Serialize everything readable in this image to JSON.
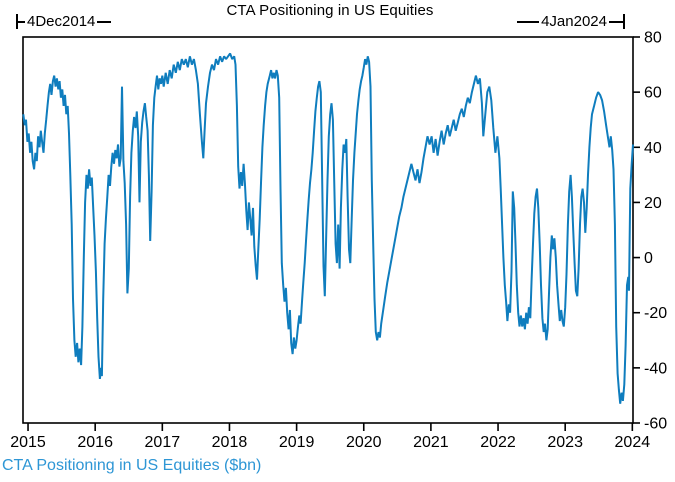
{
  "figure": {
    "title": "CTA Positioning in US Equities",
    "range_start": "4Dec2014",
    "range_end": "4Jan2024",
    "caption": "CTA Positioning in US Equities ($bn)"
  },
  "colors": {
    "line": "#0f7dbe",
    "caption": "#2d96d5",
    "axis": "#000000",
    "background": "#ffffff"
  },
  "chart_data": {
    "type": "line",
    "title": "CTA Positioning in US Equities",
    "series_name": "CTA Positioning in US Equities ($bn)",
    "xlabel": "",
    "ylabel": "",
    "grid": false,
    "legend_position": "none",
    "x_start_label": "4Dec2014",
    "x_end_label": "4Jan2024",
    "xlim": [
      2014.925,
      2024.01
    ],
    "ylim": [
      -60,
      80
    ],
    "x_ticks": [
      2015,
      2016,
      2017,
      2018,
      2019,
      2020,
      2021,
      2022,
      2023,
      2024
    ],
    "y_ticks": [
      80,
      60,
      40,
      20,
      0,
      -20,
      -40,
      -60
    ],
    "points": [
      [
        2014.93,
        52
      ],
      [
        2014.95,
        48
      ],
      [
        2014.97,
        50
      ],
      [
        2014.99,
        42
      ],
      [
        2015.01,
        45
      ],
      [
        2015.03,
        38
      ],
      [
        2015.05,
        42
      ],
      [
        2015.07,
        35
      ],
      [
        2015.09,
        32
      ],
      [
        2015.11,
        38
      ],
      [
        2015.13,
        35
      ],
      [
        2015.15,
        44
      ],
      [
        2015.17,
        40
      ],
      [
        2015.19,
        46
      ],
      [
        2015.21,
        42
      ],
      [
        2015.23,
        38
      ],
      [
        2015.25,
        45
      ],
      [
        2015.27,
        50
      ],
      [
        2015.29,
        55
      ],
      [
        2015.31,
        60
      ],
      [
        2015.33,
        63
      ],
      [
        2015.35,
        59
      ],
      [
        2015.37,
        64
      ],
      [
        2015.39,
        66
      ],
      [
        2015.41,
        62
      ],
      [
        2015.43,
        65
      ],
      [
        2015.45,
        61
      ],
      [
        2015.47,
        64
      ],
      [
        2015.49,
        58
      ],
      [
        2015.51,
        61
      ],
      [
        2015.53,
        55
      ],
      [
        2015.55,
        59
      ],
      [
        2015.57,
        52
      ],
      [
        2015.59,
        55
      ],
      [
        2015.61,
        45
      ],
      [
        2015.63,
        30
      ],
      [
        2015.65,
        12
      ],
      [
        2015.67,
        -15
      ],
      [
        2015.69,
        -30
      ],
      [
        2015.71,
        -36
      ],
      [
        2015.73,
        -31
      ],
      [
        2015.75,
        -38
      ],
      [
        2015.77,
        -33
      ],
      [
        2015.79,
        -39
      ],
      [
        2015.81,
        -25
      ],
      [
        2015.83,
        0
      ],
      [
        2015.85,
        20
      ],
      [
        2015.87,
        30
      ],
      [
        2015.89,
        25
      ],
      [
        2015.91,
        32
      ],
      [
        2015.93,
        26
      ],
      [
        2015.95,
        29
      ],
      [
        2015.97,
        18
      ],
      [
        2015.99,
        8
      ],
      [
        2016.01,
        -5
      ],
      [
        2016.03,
        -22
      ],
      [
        2016.05,
        -36
      ],
      [
        2016.07,
        -44
      ],
      [
        2016.09,
        -40
      ],
      [
        2016.1,
        -43
      ],
      [
        2016.12,
        -15
      ],
      [
        2016.14,
        5
      ],
      [
        2016.16,
        14
      ],
      [
        2016.18,
        22
      ],
      [
        2016.2,
        30
      ],
      [
        2016.22,
        26
      ],
      [
        2016.24,
        33
      ],
      [
        2016.26,
        38
      ],
      [
        2016.28,
        34
      ],
      [
        2016.3,
        39
      ],
      [
        2016.32,
        36
      ],
      [
        2016.34,
        41
      ],
      [
        2016.36,
        33
      ],
      [
        2016.38,
        36
      ],
      [
        2016.4,
        62
      ],
      [
        2016.42,
        35
      ],
      [
        2016.44,
        27
      ],
      [
        2016.46,
        12
      ],
      [
        2016.48,
        -13
      ],
      [
        2016.5,
        -4
      ],
      [
        2016.52,
        22
      ],
      [
        2016.54,
        38
      ],
      [
        2016.56,
        46
      ],
      [
        2016.58,
        51
      ],
      [
        2016.6,
        47
      ],
      [
        2016.62,
        53
      ],
      [
        2016.64,
        44
      ],
      [
        2016.66,
        20
      ],
      [
        2016.68,
        42
      ],
      [
        2016.7,
        49
      ],
      [
        2016.72,
        53
      ],
      [
        2016.74,
        56
      ],
      [
        2016.76,
        51
      ],
      [
        2016.78,
        46
      ],
      [
        2016.8,
        30
      ],
      [
        2016.82,
        6
      ],
      [
        2016.84,
        24
      ],
      [
        2016.86,
        48
      ],
      [
        2016.88,
        58
      ],
      [
        2016.9,
        62
      ],
      [
        2016.92,
        66
      ],
      [
        2016.94,
        61
      ],
      [
        2016.96,
        65
      ],
      [
        2016.98,
        63
      ],
      [
        2017.0,
        66
      ],
      [
        2017.02,
        62
      ],
      [
        2017.05,
        67
      ],
      [
        2017.08,
        63
      ],
      [
        2017.11,
        68
      ],
      [
        2017.14,
        65
      ],
      [
        2017.17,
        70
      ],
      [
        2017.2,
        67
      ],
      [
        2017.23,
        71
      ],
      [
        2017.26,
        68
      ],
      [
        2017.29,
        72
      ],
      [
        2017.32,
        70
      ],
      [
        2017.35,
        72
      ],
      [
        2017.38,
        69
      ],
      [
        2017.41,
        73
      ],
      [
        2017.44,
        70
      ],
      [
        2017.47,
        72
      ],
      [
        2017.5,
        68
      ],
      [
        2017.53,
        63
      ],
      [
        2017.56,
        52
      ],
      [
        2017.59,
        42
      ],
      [
        2017.61,
        36
      ],
      [
        2017.63,
        46
      ],
      [
        2017.65,
        56
      ],
      [
        2017.68,
        62
      ],
      [
        2017.71,
        67
      ],
      [
        2017.74,
        70
      ],
      [
        2017.77,
        68
      ],
      [
        2017.8,
        72
      ],
      [
        2017.83,
        70
      ],
      [
        2017.86,
        73
      ],
      [
        2017.89,
        71
      ],
      [
        2017.92,
        73
      ],
      [
        2017.95,
        72
      ],
      [
        2017.98,
        73
      ],
      [
        2018.01,
        74
      ],
      [
        2018.04,
        72
      ],
      [
        2018.07,
        73
      ],
      [
        2018.09,
        70
      ],
      [
        2018.11,
        55
      ],
      [
        2018.13,
        33
      ],
      [
        2018.15,
        25
      ],
      [
        2018.17,
        31
      ],
      [
        2018.19,
        26
      ],
      [
        2018.21,
        34
      ],
      [
        2018.23,
        27
      ],
      [
        2018.25,
        17
      ],
      [
        2018.27,
        10
      ],
      [
        2018.29,
        20
      ],
      [
        2018.31,
        14
      ],
      [
        2018.33,
        8
      ],
      [
        2018.35,
        18
      ],
      [
        2018.37,
        4
      ],
      [
        2018.39,
        -3
      ],
      [
        2018.41,
        -8
      ],
      [
        2018.43,
        3
      ],
      [
        2018.45,
        14
      ],
      [
        2018.47,
        27
      ],
      [
        2018.49,
        40
      ],
      [
        2018.51,
        48
      ],
      [
        2018.53,
        55
      ],
      [
        2018.55,
        60
      ],
      [
        2018.57,
        63
      ],
      [
        2018.6,
        66
      ],
      [
        2018.62,
        68
      ],
      [
        2018.64,
        65
      ],
      [
        2018.66,
        67
      ],
      [
        2018.68,
        65
      ],
      [
        2018.7,
        68
      ],
      [
        2018.72,
        66
      ],
      [
        2018.74,
        58
      ],
      [
        2018.76,
        25
      ],
      [
        2018.78,
        -2
      ],
      [
        2018.8,
        -10
      ],
      [
        2018.82,
        -16
      ],
      [
        2018.84,
        -11
      ],
      [
        2018.86,
        -20
      ],
      [
        2018.88,
        -26
      ],
      [
        2018.9,
        -19
      ],
      [
        2018.92,
        -31
      ],
      [
        2018.94,
        -35
      ],
      [
        2018.96,
        -29
      ],
      [
        2018.98,
        -33
      ],
      [
        2019.0,
        -30
      ],
      [
        2019.02,
        -25
      ],
      [
        2019.04,
        -21
      ],
      [
        2019.06,
        -24
      ],
      [
        2019.08,
        -16
      ],
      [
        2019.1,
        -9
      ],
      [
        2019.12,
        -2
      ],
      [
        2019.14,
        6
      ],
      [
        2019.16,
        14
      ],
      [
        2019.18,
        21
      ],
      [
        2019.2,
        27
      ],
      [
        2019.22,
        32
      ],
      [
        2019.24,
        38
      ],
      [
        2019.26,
        46
      ],
      [
        2019.28,
        53
      ],
      [
        2019.3,
        58
      ],
      [
        2019.32,
        62
      ],
      [
        2019.34,
        64
      ],
      [
        2019.36,
        60
      ],
      [
        2019.38,
        30
      ],
      [
        2019.4,
        -3
      ],
      [
        2019.42,
        -14
      ],
      [
        2019.44,
        8
      ],
      [
        2019.46,
        28
      ],
      [
        2019.48,
        44
      ],
      [
        2019.5,
        52
      ],
      [
        2019.52,
        56
      ],
      [
        2019.54,
        50
      ],
      [
        2019.56,
        28
      ],
      [
        2019.58,
        5
      ],
      [
        2019.6,
        -2
      ],
      [
        2019.62,
        12
      ],
      [
        2019.64,
        -4
      ],
      [
        2019.66,
        18
      ],
      [
        2019.68,
        32
      ],
      [
        2019.7,
        41
      ],
      [
        2019.72,
        38
      ],
      [
        2019.74,
        43
      ],
      [
        2019.76,
        22
      ],
      [
        2019.78,
        3
      ],
      [
        2019.8,
        -2
      ],
      [
        2019.82,
        14
      ],
      [
        2019.84,
        28
      ],
      [
        2019.86,
        38
      ],
      [
        2019.88,
        45
      ],
      [
        2019.9,
        52
      ],
      [
        2019.92,
        57
      ],
      [
        2019.94,
        61
      ],
      [
        2019.96,
        64
      ],
      [
        2019.98,
        66
      ],
      [
        2020.0,
        69
      ],
      [
        2020.02,
        72
      ],
      [
        2020.04,
        70
      ],
      [
        2020.06,
        73
      ],
      [
        2020.08,
        71
      ],
      [
        2020.1,
        62
      ],
      [
        2020.12,
        28
      ],
      [
        2020.14,
        5
      ],
      [
        2020.16,
        -15
      ],
      [
        2020.18,
        -27
      ],
      [
        2020.2,
        -30
      ],
      [
        2020.22,
        -27
      ],
      [
        2020.24,
        -29
      ],
      [
        2020.26,
        -24
      ],
      [
        2020.29,
        -19
      ],
      [
        2020.32,
        -14
      ],
      [
        2020.35,
        -9
      ],
      [
        2020.38,
        -5
      ],
      [
        2020.41,
        -1
      ],
      [
        2020.44,
        3
      ],
      [
        2020.47,
        7
      ],
      [
        2020.5,
        11
      ],
      [
        2020.53,
        15
      ],
      [
        2020.56,
        18
      ],
      [
        2020.59,
        22
      ],
      [
        2020.62,
        25
      ],
      [
        2020.65,
        28
      ],
      [
        2020.68,
        31
      ],
      [
        2020.71,
        34
      ],
      [
        2020.74,
        31
      ],
      [
        2020.77,
        28
      ],
      [
        2020.8,
        32
      ],
      [
        2020.83,
        27
      ],
      [
        2020.86,
        31
      ],
      [
        2020.89,
        36
      ],
      [
        2020.92,
        40
      ],
      [
        2020.95,
        44
      ],
      [
        2020.98,
        41
      ],
      [
        2021.01,
        44
      ],
      [
        2021.04,
        38
      ],
      [
        2021.07,
        43
      ],
      [
        2021.1,
        37
      ],
      [
        2021.13,
        42
      ],
      [
        2021.16,
        46
      ],
      [
        2021.19,
        41
      ],
      [
        2021.22,
        45
      ],
      [
        2021.25,
        48
      ],
      [
        2021.28,
        44
      ],
      [
        2021.31,
        47
      ],
      [
        2021.34,
        50
      ],
      [
        2021.37,
        46
      ],
      [
        2021.4,
        49
      ],
      [
        2021.43,
        52
      ],
      [
        2021.46,
        54
      ],
      [
        2021.49,
        51
      ],
      [
        2021.52,
        55
      ],
      [
        2021.55,
        58
      ],
      [
        2021.58,
        56
      ],
      [
        2021.61,
        60
      ],
      [
        2021.64,
        63
      ],
      [
        2021.67,
        66
      ],
      [
        2021.7,
        63
      ],
      [
        2021.73,
        65
      ],
      [
        2021.76,
        56
      ],
      [
        2021.78,
        44
      ],
      [
        2021.81,
        52
      ],
      [
        2021.84,
        60
      ],
      [
        2021.87,
        62
      ],
      [
        2021.9,
        57
      ],
      [
        2021.93,
        47
      ],
      [
        2021.96,
        38
      ],
      [
        2021.99,
        44
      ],
      [
        2022.02,
        36
      ],
      [
        2022.04,
        25
      ],
      [
        2022.06,
        12
      ],
      [
        2022.08,
        0
      ],
      [
        2022.1,
        -10
      ],
      [
        2022.12,
        -16
      ],
      [
        2022.14,
        -23
      ],
      [
        2022.16,
        -17
      ],
      [
        2022.18,
        -20
      ],
      [
        2022.2,
        -5
      ],
      [
        2022.22,
        24
      ],
      [
        2022.24,
        18
      ],
      [
        2022.26,
        5
      ],
      [
        2022.28,
        -10
      ],
      [
        2022.3,
        -20
      ],
      [
        2022.32,
        -25
      ],
      [
        2022.34,
        -21
      ],
      [
        2022.36,
        -25
      ],
      [
        2022.38,
        -22
      ],
      [
        2022.4,
        -26
      ],
      [
        2022.42,
        -20
      ],
      [
        2022.44,
        -24
      ],
      [
        2022.46,
        -18
      ],
      [
        2022.48,
        -22
      ],
      [
        2022.5,
        -8
      ],
      [
        2022.52,
        5
      ],
      [
        2022.54,
        16
      ],
      [
        2022.56,
        22
      ],
      [
        2022.58,
        25
      ],
      [
        2022.6,
        18
      ],
      [
        2022.62,
        5
      ],
      [
        2022.64,
        -10
      ],
      [
        2022.66,
        -22
      ],
      [
        2022.68,
        -27
      ],
      [
        2022.7,
        -24
      ],
      [
        2022.72,
        -30
      ],
      [
        2022.74,
        -26
      ],
      [
        2022.76,
        -12
      ],
      [
        2022.78,
        0
      ],
      [
        2022.8,
        8
      ],
      [
        2022.82,
        3
      ],
      [
        2022.84,
        7
      ],
      [
        2022.86,
        0
      ],
      [
        2022.88,
        -10
      ],
      [
        2022.9,
        -17
      ],
      [
        2022.92,
        -23
      ],
      [
        2022.94,
        -19
      ],
      [
        2022.96,
        -23
      ],
      [
        2022.98,
        -25
      ],
      [
        2023.0,
        -18
      ],
      [
        2023.02,
        -6
      ],
      [
        2023.04,
        12
      ],
      [
        2023.06,
        24
      ],
      [
        2023.08,
        30
      ],
      [
        2023.1,
        22
      ],
      [
        2023.12,
        10
      ],
      [
        2023.14,
        -2
      ],
      [
        2023.16,
        -12
      ],
      [
        2023.18,
        -14
      ],
      [
        2023.2,
        -4
      ],
      [
        2023.22,
        12
      ],
      [
        2023.24,
        22
      ],
      [
        2023.26,
        25
      ],
      [
        2023.28,
        20
      ],
      [
        2023.3,
        9
      ],
      [
        2023.32,
        18
      ],
      [
        2023.34,
        30
      ],
      [
        2023.36,
        40
      ],
      [
        2023.38,
        47
      ],
      [
        2023.4,
        52
      ],
      [
        2023.43,
        55
      ],
      [
        2023.46,
        58
      ],
      [
        2023.49,
        60
      ],
      [
        2023.52,
        59
      ],
      [
        2023.55,
        57
      ],
      [
        2023.58,
        53
      ],
      [
        2023.61,
        48
      ],
      [
        2023.64,
        43
      ],
      [
        2023.66,
        40
      ],
      [
        2023.68,
        44
      ],
      [
        2023.7,
        39
      ],
      [
        2023.72,
        32
      ],
      [
        2023.74,
        12
      ],
      [
        2023.76,
        -25
      ],
      [
        2023.78,
        -42
      ],
      [
        2023.8,
        -48
      ],
      [
        2023.82,
        -53
      ],
      [
        2023.84,
        -49
      ],
      [
        2023.86,
        -52
      ],
      [
        2023.88,
        -46
      ],
      [
        2023.9,
        -32
      ],
      [
        2023.92,
        -10
      ],
      [
        2023.94,
        -7
      ],
      [
        2023.95,
        -12
      ],
      [
        2023.97,
        25
      ],
      [
        2023.99,
        34
      ],
      [
        2024.01,
        41
      ]
    ]
  }
}
